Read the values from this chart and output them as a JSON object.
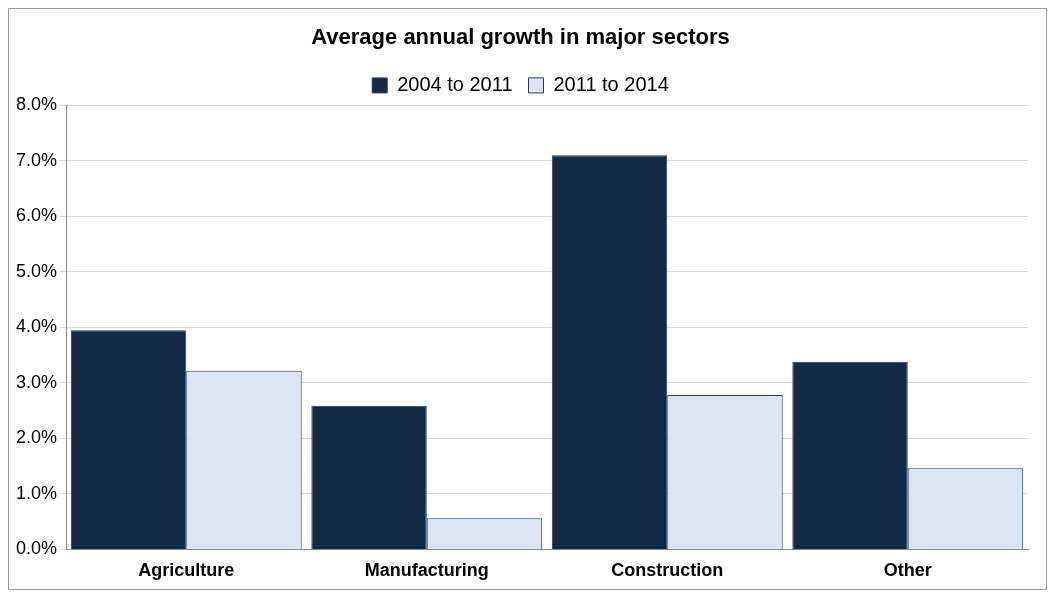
{
  "chart_data": {
    "type": "bar",
    "title": "Average annual growth in major sectors",
    "categories": [
      "Agriculture",
      "Manufacturing",
      "Construction",
      "Other"
    ],
    "series": [
      {
        "name": "2004 to 2011",
        "color": "#132a47",
        "values": [
          3.95,
          2.59,
          7.1,
          3.38
        ]
      },
      {
        "name": "2011 to 2014",
        "color": "#dce6f2",
        "values": [
          3.22,
          0.56,
          2.78,
          1.46
        ]
      }
    ],
    "ylim": [
      0,
      8
    ],
    "yticks": [
      {
        "value": 0,
        "label": "0.0%"
      },
      {
        "value": 1,
        "label": "1.0%"
      },
      {
        "value": 2,
        "label": "2.0%"
      },
      {
        "value": 3,
        "label": "3.0%"
      },
      {
        "value": 4,
        "label": "4.0%"
      },
      {
        "value": 5,
        "label": "5.0%"
      },
      {
        "value": 6,
        "label": "6.0%"
      },
      {
        "value": 7,
        "label": "7.0%"
      },
      {
        "value": 8,
        "label": "8.0%"
      }
    ],
    "grid": "y",
    "legend": "top"
  }
}
